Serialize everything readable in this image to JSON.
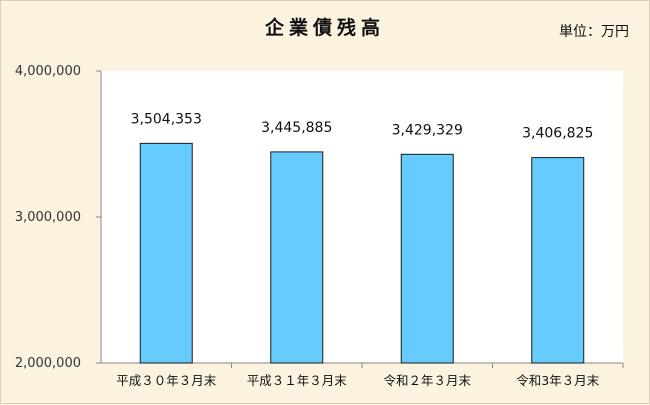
{
  "chart_data": {
    "type": "bar",
    "title": "企業債残高",
    "unit_label": "単位：万円",
    "categories": [
      "平成３０年３月末",
      "平成３１年３月末",
      "令和２年３月末",
      "令和3年３月末"
    ],
    "values": [
      3504353,
      3445885,
      3429329,
      3406825
    ],
    "value_labels": [
      "3,504,353",
      "3,445,885",
      "3,429,329",
      "3,406,825"
    ],
    "ylim": [
      2000000,
      4000000
    ],
    "yticks": [
      2000000,
      3000000,
      4000000
    ],
    "ytick_labels": [
      "2,000,000",
      "3,000,000",
      "4,000,000"
    ],
    "bar_color": "#66ccff",
    "plot_background": "#ffffff",
    "grid": false,
    "legend": "none"
  }
}
